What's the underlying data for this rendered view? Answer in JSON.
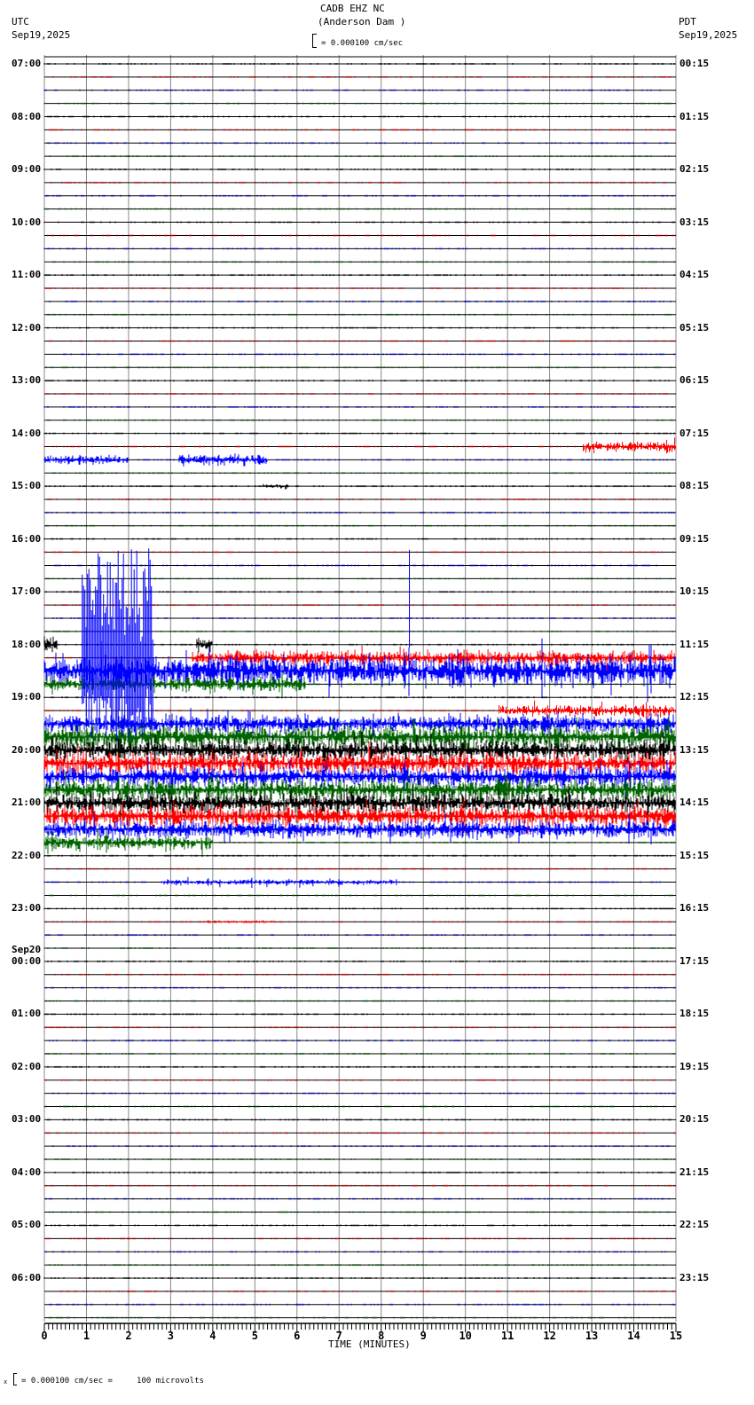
{
  "header": {
    "station": "CADB EHZ NC",
    "location": "(Anderson Dam )",
    "left_tz": "UTC",
    "left_date": "Sep19,2025",
    "right_tz": "PDT",
    "right_date": "Sep19,2025",
    "scale_text": "= 0.000100 cm/sec"
  },
  "footer": {
    "scale_text": "= 0.000100 cm/sec =     100 microvolts",
    "x_axis_title": "TIME (MINUTES)"
  },
  "chart_data": {
    "type": "line",
    "title": "CADB EHZ NC (Anderson Dam ) helicorder",
    "xlabel": "TIME (MINUTES)",
    "ylabel": "",
    "xlim": [
      0,
      15
    ],
    "x_ticks": [
      0,
      1,
      2,
      3,
      4,
      5,
      6,
      7,
      8,
      9,
      10,
      11,
      12,
      13,
      14,
      15
    ],
    "grid": true,
    "trace_colors": [
      "#000000",
      "#ff0000",
      "#0000ff",
      "#006400"
    ],
    "traces_per_hour": 4,
    "total_traces": 96,
    "left_labels": [
      {
        "row": 0,
        "text": "07:00"
      },
      {
        "row": 4,
        "text": "08:00"
      },
      {
        "row": 8,
        "text": "09:00"
      },
      {
        "row": 12,
        "text": "10:00"
      },
      {
        "row": 16,
        "text": "11:00"
      },
      {
        "row": 20,
        "text": "12:00"
      },
      {
        "row": 24,
        "text": "13:00"
      },
      {
        "row": 28,
        "text": "14:00"
      },
      {
        "row": 32,
        "text": "15:00"
      },
      {
        "row": 36,
        "text": "16:00"
      },
      {
        "row": 40,
        "text": "17:00"
      },
      {
        "row": 44,
        "text": "18:00"
      },
      {
        "row": 48,
        "text": "19:00"
      },
      {
        "row": 52,
        "text": "20:00"
      },
      {
        "row": 56,
        "text": "21:00"
      },
      {
        "row": 60,
        "text": "22:00"
      },
      {
        "row": 64,
        "text": "23:00"
      },
      {
        "row": 68,
        "text": "00:00",
        "date": "Sep20"
      },
      {
        "row": 72,
        "text": "01:00"
      },
      {
        "row": 76,
        "text": "02:00"
      },
      {
        "row": 80,
        "text": "03:00"
      },
      {
        "row": 84,
        "text": "04:00"
      },
      {
        "row": 88,
        "text": "05:00"
      },
      {
        "row": 92,
        "text": "06:00"
      }
    ],
    "right_labels": [
      {
        "row": 0,
        "text": "00:15"
      },
      {
        "row": 4,
        "text": "01:15"
      },
      {
        "row": 8,
        "text": "02:15"
      },
      {
        "row": 12,
        "text": "03:15"
      },
      {
        "row": 16,
        "text": "04:15"
      },
      {
        "row": 20,
        "text": "05:15"
      },
      {
        "row": 24,
        "text": "06:15"
      },
      {
        "row": 28,
        "text": "07:15"
      },
      {
        "row": 32,
        "text": "08:15"
      },
      {
        "row": 36,
        "text": "09:15"
      },
      {
        "row": 40,
        "text": "10:15"
      },
      {
        "row": 44,
        "text": "11:15"
      },
      {
        "row": 48,
        "text": "12:15"
      },
      {
        "row": 52,
        "text": "13:15"
      },
      {
        "row": 56,
        "text": "14:15"
      },
      {
        "row": 60,
        "text": "15:15"
      },
      {
        "row": 64,
        "text": "16:15"
      },
      {
        "row": 68,
        "text": "17:15"
      },
      {
        "row": 72,
        "text": "18:15"
      },
      {
        "row": 76,
        "text": "19:15"
      },
      {
        "row": 80,
        "text": "20:15"
      },
      {
        "row": 84,
        "text": "21:15"
      },
      {
        "row": 88,
        "text": "22:15"
      },
      {
        "row": 92,
        "text": "23:15"
      }
    ],
    "events": [
      {
        "row": 30,
        "x0": 0.0,
        "x1": 2.0,
        "amp": 6,
        "note": "14:30 blue burst"
      },
      {
        "row": 30,
        "x0": 3.2,
        "x1": 5.3,
        "amp": 8,
        "note": "14:30 blue burst with spike ~5.0"
      },
      {
        "row": 29,
        "x0": 12.8,
        "x1": 15.0,
        "amp": 8,
        "note": "14:15 red bursts ~13.0 and ~14.5"
      },
      {
        "row": 32,
        "x0": 5.2,
        "x1": 5.8,
        "amp": 3
      },
      {
        "row": 44,
        "x0": 0.0,
        "x1": 0.3,
        "amp": 14
      },
      {
        "row": 44,
        "x0": 3.6,
        "x1": 4.0,
        "amp": 10
      },
      {
        "row": 45,
        "x0": 3.5,
        "x1": 15.0,
        "amp": 10
      },
      {
        "row": 46,
        "x0": 0.0,
        "x1": 15.0,
        "amp": 22,
        "note": "large blue event 1-2.5 min"
      },
      {
        "row": 47,
        "x0": 0.0,
        "x1": 6.2,
        "amp": 10
      },
      {
        "row": 49,
        "x0": 10.8,
        "x1": 15.0,
        "amp": 8
      },
      {
        "row": 50,
        "x0": 0.0,
        "x1": 15.0,
        "amp": 12
      },
      {
        "row": 51,
        "x0": 0.0,
        "x1": 15.0,
        "amp": 16
      },
      {
        "row": 52,
        "x0": 0.0,
        "x1": 15.0,
        "amp": 14
      },
      {
        "row": 53,
        "x0": 0.0,
        "x1": 15.0,
        "amp": 14
      },
      {
        "row": 54,
        "x0": 0.0,
        "x1": 15.0,
        "amp": 14
      },
      {
        "row": 55,
        "x0": 0.0,
        "x1": 15.0,
        "amp": 14
      },
      {
        "row": 56,
        "x0": 0.0,
        "x1": 15.0,
        "amp": 14
      },
      {
        "row": 57,
        "x0": 0.0,
        "x1": 15.0,
        "amp": 14
      },
      {
        "row": 58,
        "x0": 0.0,
        "x1": 15.0,
        "amp": 12
      },
      {
        "row": 59,
        "x0": 0.0,
        "x1": 4.0,
        "amp": 10
      },
      {
        "row": 62,
        "x0": 2.8,
        "x1": 8.4,
        "amp": 4,
        "note": "22:30 small blue bursts"
      },
      {
        "row": 65,
        "x0": 3.8,
        "x1": 5.5,
        "amp": 2
      }
    ]
  }
}
